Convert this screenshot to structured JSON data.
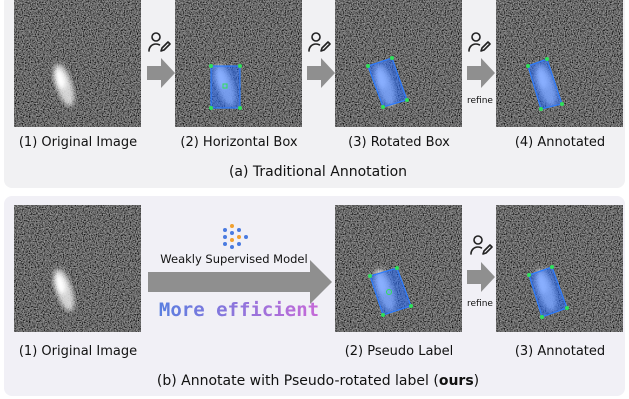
{
  "panel_a": {
    "captions": [
      "(1) Original Image",
      "(2) Horizontal Box",
      "(3) Rotated Box",
      "(4) Annotated"
    ],
    "arrow_label": "refine",
    "title": "(a) Traditional Annotation"
  },
  "panel_b": {
    "captions": [
      "(1) Original Image",
      "(2) Pseudo Label",
      "(3) Annotated"
    ],
    "model_label": "Weakly Supervised Model",
    "highlight": "More efficient",
    "arrow_label": "refine",
    "title_start": "(b) Annotate with Pseudo-rotated label (",
    "title_bold": "ours",
    "title_end": ")"
  }
}
